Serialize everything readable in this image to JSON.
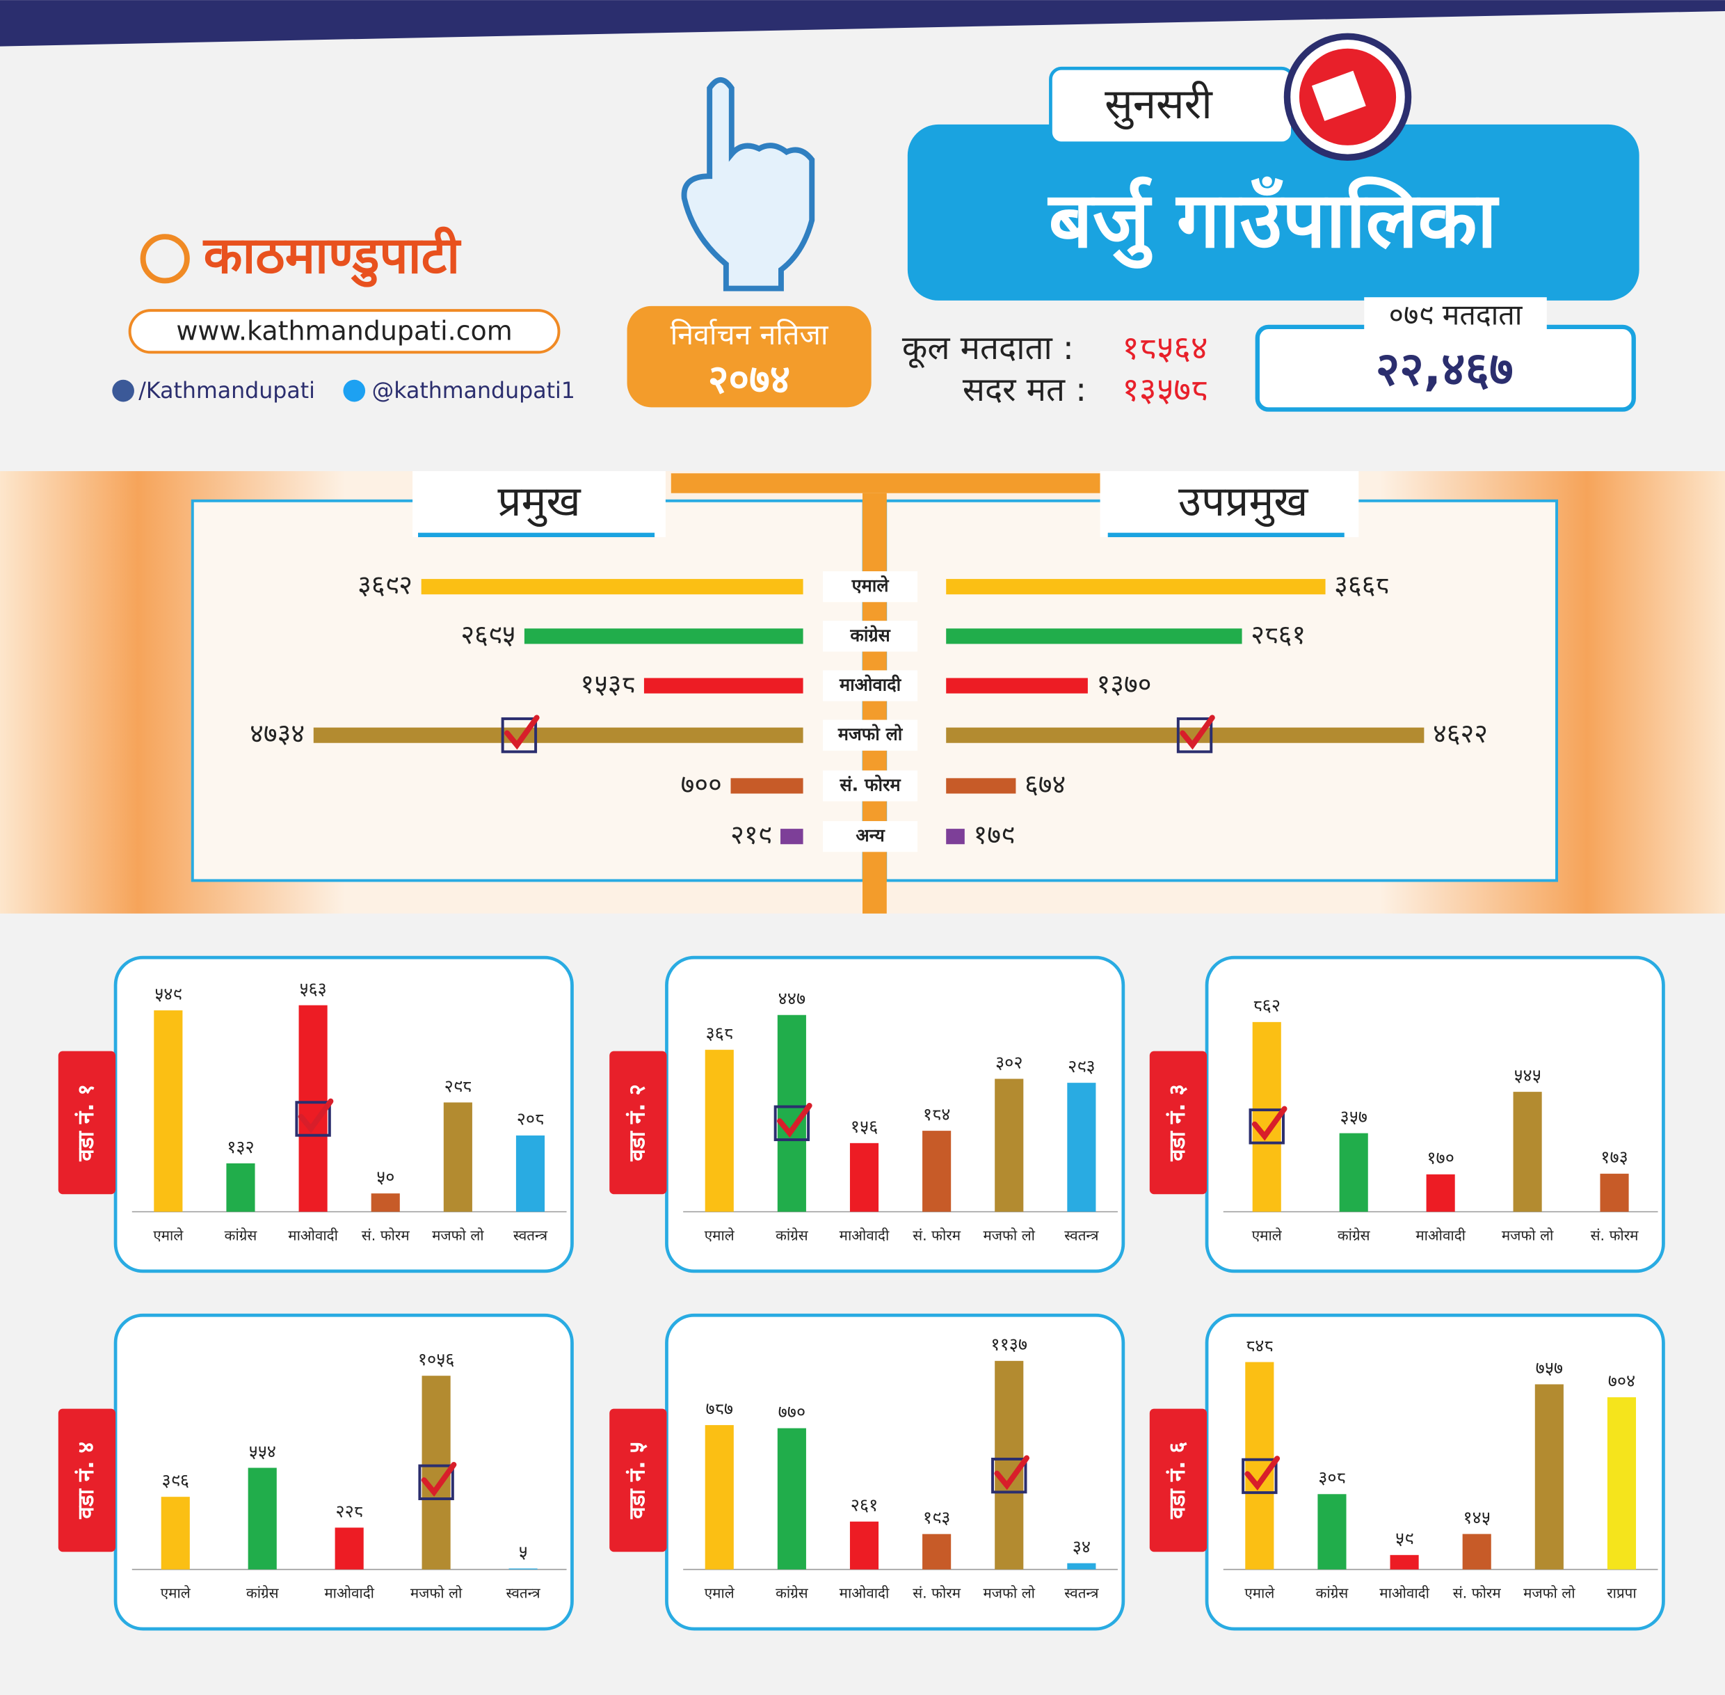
{
  "header": {
    "logo": "काठमाण्डुपाटी",
    "website": "www.kathmandupati.com",
    "facebook": "/Kathmandupati",
    "twitter": "@kathmandupati1",
    "result_label": "निर्वाचन नतिजा",
    "result_year": "२०७४",
    "district": "सुनसरी",
    "municipality": "बर्जु गाउँपालिका",
    "total_voters_label": "कूल मतदाता :",
    "total_voters": "१८५६४",
    "valid_votes_label": "सदर मत :",
    "valid_votes": "१३५७८",
    "voters_079_label": "०७९ मतदाता",
    "voters_079": "२२,४६७"
  },
  "chart_data": [
    {
      "type": "butterfly",
      "categories": [
        "एमाले",
        "कांग्रेस",
        "माओवादी",
        "मजफो लो",
        "सं. फोरम",
        "अन्य"
      ],
      "colors": [
        "#fbbf14",
        "#21ad4b",
        "#ed1c24",
        "#b38b30",
        "#c75b28",
        "#7d3f98"
      ],
      "xlim": [
        0,
        5000
      ],
      "checked": "मजफो लो",
      "series": [
        {
          "name": "प्रमुख",
          "values": [
            3692,
            2695,
            1538,
            4734,
            700,
            219
          ],
          "value_labels": [
            "३६९२",
            "२६९५",
            "१५३८",
            "४७३४",
            "७००",
            "२१९"
          ]
        },
        {
          "name": "उपप्रमुख",
          "values": [
            3668,
            2861,
            1370,
            4622,
            674,
            179
          ],
          "value_labels": [
            "३६६८",
            "२८६१",
            "१३७०",
            "४६२२",
            "६७४",
            "१७९"
          ]
        }
      ]
    },
    {
      "type": "bar",
      "title": "वडा नं. १",
      "categories": [
        "एमाले",
        "कांग्रेस",
        "माओवादी",
        "सं. फोरम",
        "मजफो लो",
        "स्वतन्त्र"
      ],
      "colors": [
        "#fbbf14",
        "#21ad4b",
        "#ed1c24",
        "#c75b28",
        "#b38b30",
        "#29abe2"
      ],
      "ylim": [
        0,
        600
      ],
      "checked": "माओवादी",
      "values": [
        549,
        132,
        563,
        50,
        298,
        208
      ],
      "value_labels": [
        "५४९",
        "१३२",
        "५६३",
        "५०",
        "२९८",
        "२०८"
      ]
    },
    {
      "type": "bar",
      "title": "वडा नं. २",
      "categories": [
        "एमाले",
        "कांग्रेस",
        "माओवादी",
        "सं. फोरम",
        "मजफो लो",
        "स्वतन्त्र"
      ],
      "colors": [
        "#fbbf14",
        "#21ad4b",
        "#ed1c24",
        "#c75b28",
        "#b38b30",
        "#29abe2"
      ],
      "ylim": [
        0,
        500
      ],
      "checked": "कांग्रेस",
      "values": [
        368,
        447,
        156,
        184,
        302,
        293
      ],
      "value_labels": [
        "३६८",
        "४४७",
        "१५६",
        "१८४",
        "३०२",
        "२९३"
      ]
    },
    {
      "type": "bar",
      "title": "वडा नं. ३",
      "categories": [
        "एमाले",
        "कांग्रेस",
        "माओवादी",
        "मजफो लो",
        "सं. फोरम"
      ],
      "colors": [
        "#fbbf14",
        "#21ad4b",
        "#ed1c24",
        "#b38b30",
        "#c75b28"
      ],
      "ylim": [
        0,
        1000
      ],
      "checked": "एमाले",
      "values": [
        862,
        357,
        170,
        545,
        173
      ],
      "value_labels": [
        "८६२",
        "३५७",
        "१७०",
        "५४५",
        "१७३"
      ]
    },
    {
      "type": "bar",
      "title": "वडा नं. ४",
      "categories": [
        "एमाले",
        "कांग्रेस",
        "माओवादी",
        "मजफो लो",
        "स्वतन्त्र"
      ],
      "colors": [
        "#fbbf14",
        "#21ad4b",
        "#ed1c24",
        "#b38b30",
        "#29abe2"
      ],
      "ylim": [
        0,
        1200
      ],
      "checked": "मजफो लो",
      "values": [
        396,
        554,
        228,
        1056,
        5
      ],
      "value_labels": [
        "३९६",
        "५५४",
        "२२८",
        "१०५६",
        "५"
      ]
    },
    {
      "type": "bar",
      "title": "वडा नं. ५",
      "categories": [
        "एमाले",
        "कांग्रेस",
        "माओवादी",
        "सं. फोरम",
        "मजफो लो",
        "स्वतन्त्र"
      ],
      "colors": [
        "#fbbf14",
        "#21ad4b",
        "#ed1c24",
        "#c75b28",
        "#b38b30",
        "#29abe2"
      ],
      "ylim": [
        0,
        1200
      ],
      "checked": "मजफो लो",
      "values": [
        787,
        770,
        261,
        193,
        1137,
        34
      ],
      "value_labels": [
        "७८७",
        "७७०",
        "२६१",
        "१९३",
        "११३७",
        "३४"
      ]
    },
    {
      "type": "bar",
      "title": "वडा नं. ६",
      "categories": [
        "एमाले",
        "कांग्रेस",
        "माओवादी",
        "सं. फोरम",
        "मजफो लो",
        "राप्रपा"
      ],
      "colors": [
        "#fbbf14",
        "#21ad4b",
        "#ed1c24",
        "#c75b28",
        "#b38b30",
        "#f5e41c"
      ],
      "ylim": [
        0,
        900
      ],
      "checked": "एमाले",
      "values": [
        848,
        308,
        59,
        145,
        757,
        704
      ],
      "value_labels": [
        "८४८",
        "३०८",
        "५९",
        "१४५",
        "७५७",
        "७०४"
      ]
    }
  ]
}
